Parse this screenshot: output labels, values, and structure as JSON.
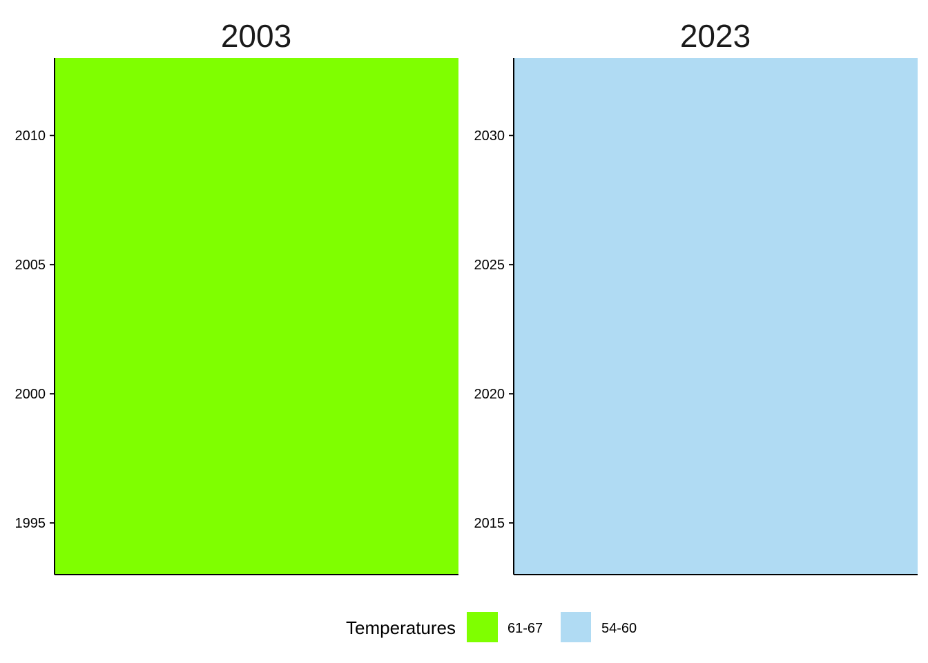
{
  "chart_data": [
    {
      "type": "bar",
      "title": "2003",
      "ylim": [
        1993,
        2013
      ],
      "yticks": [
        1995,
        2000,
        2005,
        2010
      ],
      "ytick_labels": [
        "1995",
        "2000",
        "2005",
        "2010"
      ],
      "series": [
        {
          "name": "61-67",
          "values": [
            2013
          ],
          "color": "#7FFF00"
        }
      ],
      "grid": false
    },
    {
      "type": "bar",
      "title": "2023",
      "ylim": [
        2013,
        2033
      ],
      "yticks": [
        2015,
        2020,
        2025,
        2030
      ],
      "ytick_labels": [
        "2015",
        "2020",
        "2025",
        "2030"
      ],
      "series": [
        {
          "name": "54-60",
          "values": [
            2033
          ],
          "color": "#B0DBF3"
        }
      ],
      "grid": false
    }
  ],
  "legend": {
    "title": "Temperatures",
    "position": "bottom",
    "items": [
      {
        "label": "61-67",
        "color": "#7FFF00"
      },
      {
        "label": "54-60",
        "color": "#B0DBF3"
      }
    ]
  }
}
